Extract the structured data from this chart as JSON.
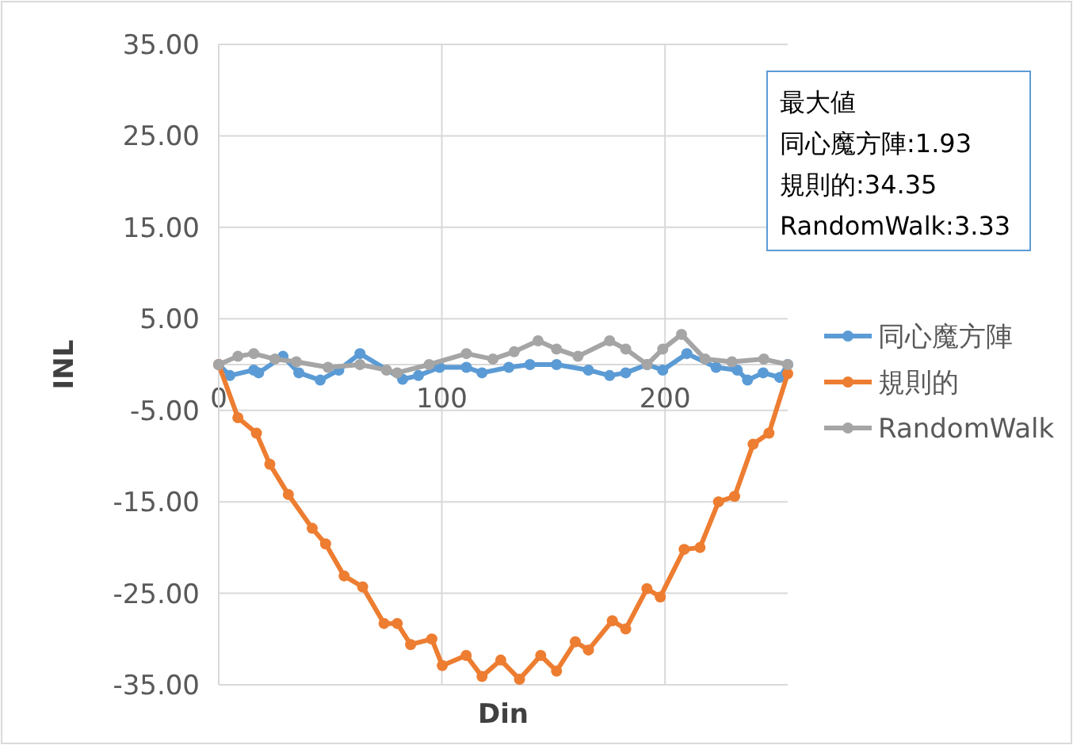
{
  "chart_data": {
    "type": "line",
    "xlabel": "Din",
    "ylabel": "INL",
    "xlim": [
      0,
      255
    ],
    "xticks": [
      0,
      100,
      200
    ],
    "ylim": [
      -35,
      35
    ],
    "yticks": [
      {
        "value": -35,
        "label": "-35.00"
      },
      {
        "value": -25,
        "label": "-25.00"
      },
      {
        "value": -15,
        "label": "-15.00"
      },
      {
        "value": -5,
        "label": "-5.00"
      },
      {
        "value": 5,
        "label": "5.00"
      },
      {
        "value": 15,
        "label": "15.00"
      },
      {
        "value": 25,
        "label": "25.00"
      },
      {
        "value": 35,
        "label": "35.00"
      }
    ],
    "grid": true,
    "legend": "right",
    "marker": "circle",
    "line_style": "solid",
    "annotations": [
      "最大値",
      "同心魔方陣:1.93",
      "規則的:34.35",
      "RandomWalk:3.33"
    ],
    "series": [
      {
        "name": "同心魔方陣",
        "color": "#5b9bd5",
        "x": [
          0,
          5,
          15.7,
          17.9,
          28.8,
          35.9,
          45.5,
          53.8,
          63.3,
          82.4,
          89.5,
          99,
          111,
          118,
          130,
          139.5,
          151.4,
          165.7,
          175.2,
          182.4,
          192,
          199,
          209.8,
          222.9,
          232.4,
          237,
          244,
          251.4,
          255
        ],
        "values": [
          0,
          -1.2,
          -0.6,
          -0.9,
          0.9,
          -0.9,
          -1.7,
          -0.6,
          1.2,
          -1.6,
          -1.2,
          -0.3,
          -0.3,
          -0.9,
          -0.3,
          0,
          0,
          -0.6,
          -1.2,
          -0.9,
          0,
          -0.6,
          1.2,
          -0.3,
          -0.6,
          -1.7,
          -0.9,
          -1.4,
          0
        ]
      },
      {
        "name": "規則的",
        "color": "#ed7d31",
        "x": [
          0,
          8.6,
          16.9,
          22.9,
          31.2,
          41.9,
          47.9,
          56.2,
          64.5,
          74.1,
          80,
          86,
          95.5,
          100.2,
          110.9,
          118,
          126.4,
          134.8,
          144.3,
          151.4,
          159.8,
          165.7,
          176.4,
          182.4,
          191.9,
          197.9,
          208.6,
          215.7,
          224,
          231.2,
          239.5,
          246.6,
          255
        ],
        "values": [
          0,
          -5.8,
          -7.5,
          -10.9,
          -14.2,
          -17.9,
          -19.6,
          -23.1,
          -24.3,
          -28.3,
          -28.3,
          -30.6,
          -30,
          -32.9,
          -31.8,
          -34.1,
          -32.3,
          -34.4,
          -31.8,
          -33.5,
          -30.3,
          -31.2,
          -28,
          -28.9,
          -24.5,
          -25.4,
          -20.2,
          -20,
          -15,
          -14.4,
          -8.7,
          -7.5,
          -1
        ]
      },
      {
        "name": "RandomWalk",
        "color": "#a5a5a5",
        "x": [
          0,
          8.6,
          15.7,
          25.2,
          34.8,
          49,
          63.3,
          75.2,
          80,
          94.3,
          111,
          122.9,
          132.4,
          143.1,
          151.4,
          161,
          175.2,
          182.4,
          192,
          199,
          207.4,
          218,
          230,
          244.3,
          255
        ],
        "values": [
          0,
          0.9,
          1.2,
          0.6,
          0.3,
          -0.3,
          0,
          -0.6,
          -0.9,
          0,
          1.2,
          0.6,
          1.4,
          2.6,
          1.7,
          0.9,
          2.6,
          1.7,
          0,
          1.7,
          3.3,
          0.6,
          0.3,
          0.6,
          0
        ]
      }
    ]
  }
}
